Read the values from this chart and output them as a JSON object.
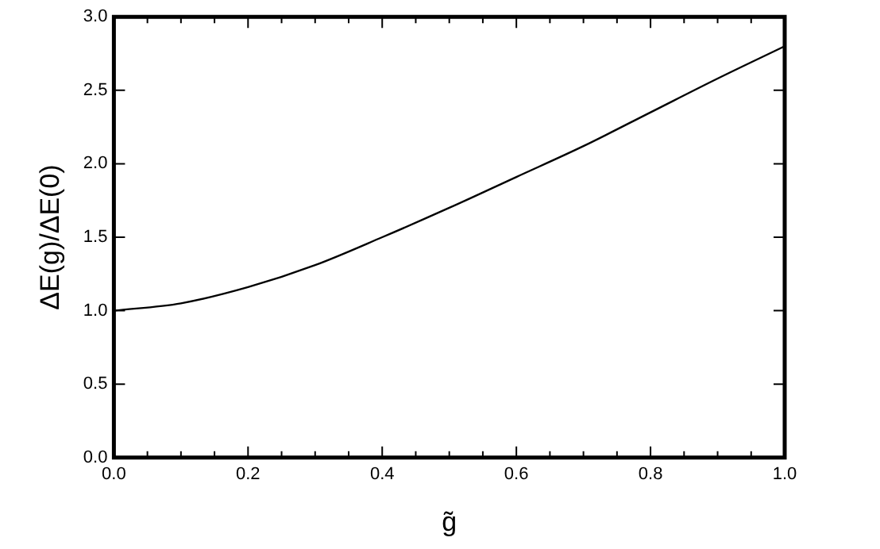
{
  "chart_data": {
    "type": "line",
    "xlabel": "g̃",
    "ylabel": "ΔE(g)/ΔE(0)",
    "x": [
      0,
      0.1,
      0.2,
      0.3,
      0.4,
      0.5,
      0.6,
      0.7,
      0.8,
      0.9,
      1.0
    ],
    "series": [
      {
        "color": "#000000",
        "values": [
          1.0,
          1.05,
          1.16,
          1.31,
          1.5,
          1.7,
          1.91,
          2.12,
          2.35,
          2.58,
          2.8
        ]
      }
    ],
    "xlim": [
      0,
      1
    ],
    "ylim": [
      0,
      3
    ],
    "xticks": [
      {
        "value": 0,
        "label": "0.0"
      },
      {
        "value": 0.05,
        "label": null
      },
      {
        "value": 0.1,
        "label": null
      },
      {
        "value": 0.15,
        "label": null
      },
      {
        "value": 0.2,
        "label": "0.2"
      },
      {
        "value": 0.25,
        "label": null
      },
      {
        "value": 0.3,
        "label": null
      },
      {
        "value": 0.35,
        "label": null
      },
      {
        "value": 0.4,
        "label": "0.4"
      },
      {
        "value": 0.45,
        "label": null
      },
      {
        "value": 0.5,
        "label": null
      },
      {
        "value": 0.55,
        "label": null
      },
      {
        "value": 0.6,
        "label": "0.6"
      },
      {
        "value": 0.65,
        "label": null
      },
      {
        "value": 0.7,
        "label": null
      },
      {
        "value": 0.75,
        "label": null
      },
      {
        "value": 0.8,
        "label": "0.8"
      },
      {
        "value": 0.85,
        "label": null
      },
      {
        "value": 0.9,
        "label": null
      },
      {
        "value": 0.95,
        "label": null
      },
      {
        "value": 1,
        "label": "1.0"
      }
    ],
    "yticks": [
      {
        "value": 0,
        "label": "0.0"
      },
      0.5,
      {
        "value": 1,
        "label": "1.0"
      },
      1.5,
      {
        "value": 2,
        "label": "2.0"
      },
      2.5,
      {
        "value": 3,
        "label": "3.0"
      }
    ],
    "grid": false,
    "legend": false,
    "marker": "none",
    "line_style": "solid"
  }
}
